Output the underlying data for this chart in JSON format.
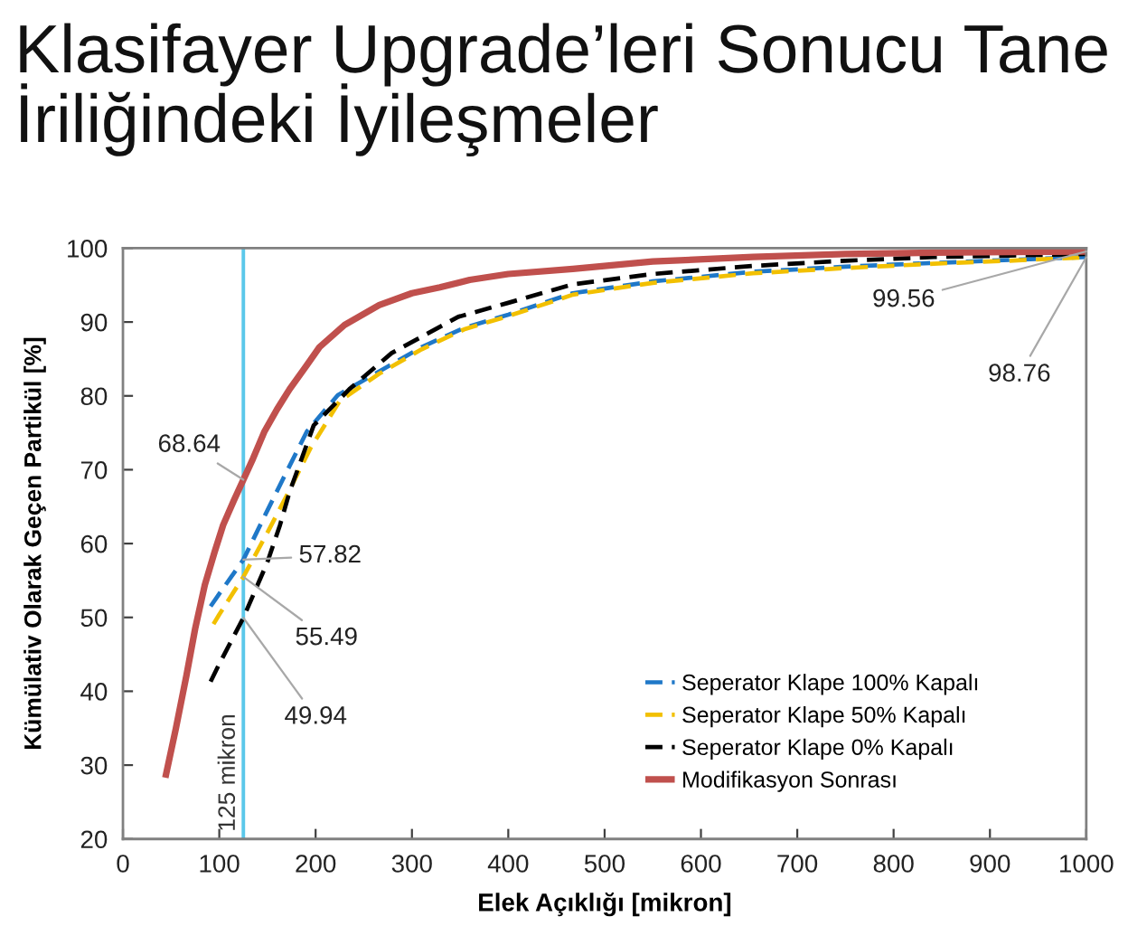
{
  "chart_data": {
    "type": "line",
    "title": "Klasifayer Upgrade’leri Sonucu Tane\nİriliğindeki İyileşmeler",
    "xlabel": "Elek Açıklığı [mikron]",
    "ylabel": "Kümülativ Olarak Geçen Partikül [%]",
    "xlim": [
      0,
      1000
    ],
    "xticks": [
      0,
      100,
      200,
      300,
      400,
      500,
      600,
      700,
      800,
      900,
      1000
    ],
    "ylim": [
      20,
      100
    ],
    "yticks": [
      20,
      30,
      40,
      50,
      60,
      70,
      80,
      90,
      100
    ],
    "grid": false,
    "legend": "bottom right",
    "series": [
      {
        "name": "Seperator Klape 100% Kapalı",
        "color": "#1f78c8",
        "line_style": "dashed",
        "x": [
          91,
          100,
          125,
          150,
          166,
          191,
          223,
          266,
          310,
          354,
          400,
          467,
          550,
          654,
          750,
          842,
          920,
          1000
        ],
        "values": [
          51.5,
          53.2,
          57.82,
          64.5,
          68.7,
          75.2,
          80.1,
          83.3,
          86.6,
          89.2,
          91.0,
          93.9,
          95.5,
          96.8,
          97.5,
          98.0,
          98.4,
          98.8
        ],
        "value_labels": [
          null,
          null,
          "57.82",
          null,
          null,
          null,
          null,
          null,
          null,
          null,
          null,
          null,
          null,
          null,
          null,
          null,
          null,
          null
        ]
      },
      {
        "name": "Seperator Klape 50% Kapalı",
        "color": "#f2c000",
        "line_style": "dashed",
        "x": [
          94,
          100,
          125,
          150,
          170,
          195,
          225,
          266,
          310,
          354,
          400,
          467,
          550,
          654,
          750,
          842,
          920,
          1000
        ],
        "values": [
          49.1,
          50.4,
          55.49,
          61.5,
          66.5,
          73.0,
          79.3,
          83.0,
          86.3,
          89.0,
          90.8,
          93.7,
          95.3,
          96.6,
          97.3,
          97.9,
          98.3,
          98.76
        ],
        "value_labels": [
          null,
          null,
          "55.49",
          null,
          null,
          null,
          null,
          null,
          null,
          null,
          null,
          null,
          null,
          null,
          null,
          null,
          null,
          "98.76"
        ]
      },
      {
        "name": "Seperator Klape 0% Kapalı",
        "color": "#000000",
        "line_style": "dashed",
        "x": [
          91,
          100,
          125,
          150,
          163,
          173,
          198,
          235,
          279,
          348,
          400,
          467,
          550,
          654,
          750,
          842,
          920,
          1000
        ],
        "values": [
          41.3,
          43.7,
          49.94,
          57.5,
          62.5,
          67.0,
          76.0,
          80.9,
          85.8,
          90.7,
          92.6,
          95.1,
          96.5,
          97.6,
          98.3,
          98.8,
          99.0,
          99.2
        ],
        "value_labels": [
          null,
          null,
          "49.94",
          null,
          null,
          null,
          null,
          null,
          null,
          null,
          null,
          null,
          null,
          null,
          null,
          null,
          null,
          null
        ]
      },
      {
        "name": "Modifikasyon Sonrası",
        "color": "#c0504d",
        "line_style": "solid",
        "x": [
          44,
          55,
          66,
          75,
          85,
          95,
          104,
          115,
          125,
          135,
          147,
          160,
          173,
          190,
          204,
          230,
          266,
          300,
          329,
          360,
          400,
          467,
          550,
          654,
          750,
          841,
          920,
          1000
        ],
        "values": [
          28.3,
          35.0,
          42.2,
          48.5,
          54.4,
          58.8,
          62.5,
          65.8,
          68.64,
          71.5,
          75.2,
          78.2,
          80.9,
          84.0,
          86.6,
          89.6,
          92.3,
          93.9,
          94.7,
          95.7,
          96.5,
          97.2,
          98.2,
          98.8,
          99.2,
          99.4,
          99.5,
          99.56
        ],
        "value_labels": [
          null,
          null,
          null,
          null,
          null,
          null,
          null,
          null,
          "68.64",
          null,
          null,
          null,
          null,
          null,
          null,
          null,
          null,
          null,
          null,
          null,
          null,
          null,
          null,
          null,
          null,
          null,
          null,
          "99.56"
        ]
      }
    ],
    "ref_lines": [
      {
        "axis": "x",
        "value": 125,
        "label": "125 mikron",
        "color": "#5bc8ea",
        "line_style": "solid"
      }
    ]
  }
}
